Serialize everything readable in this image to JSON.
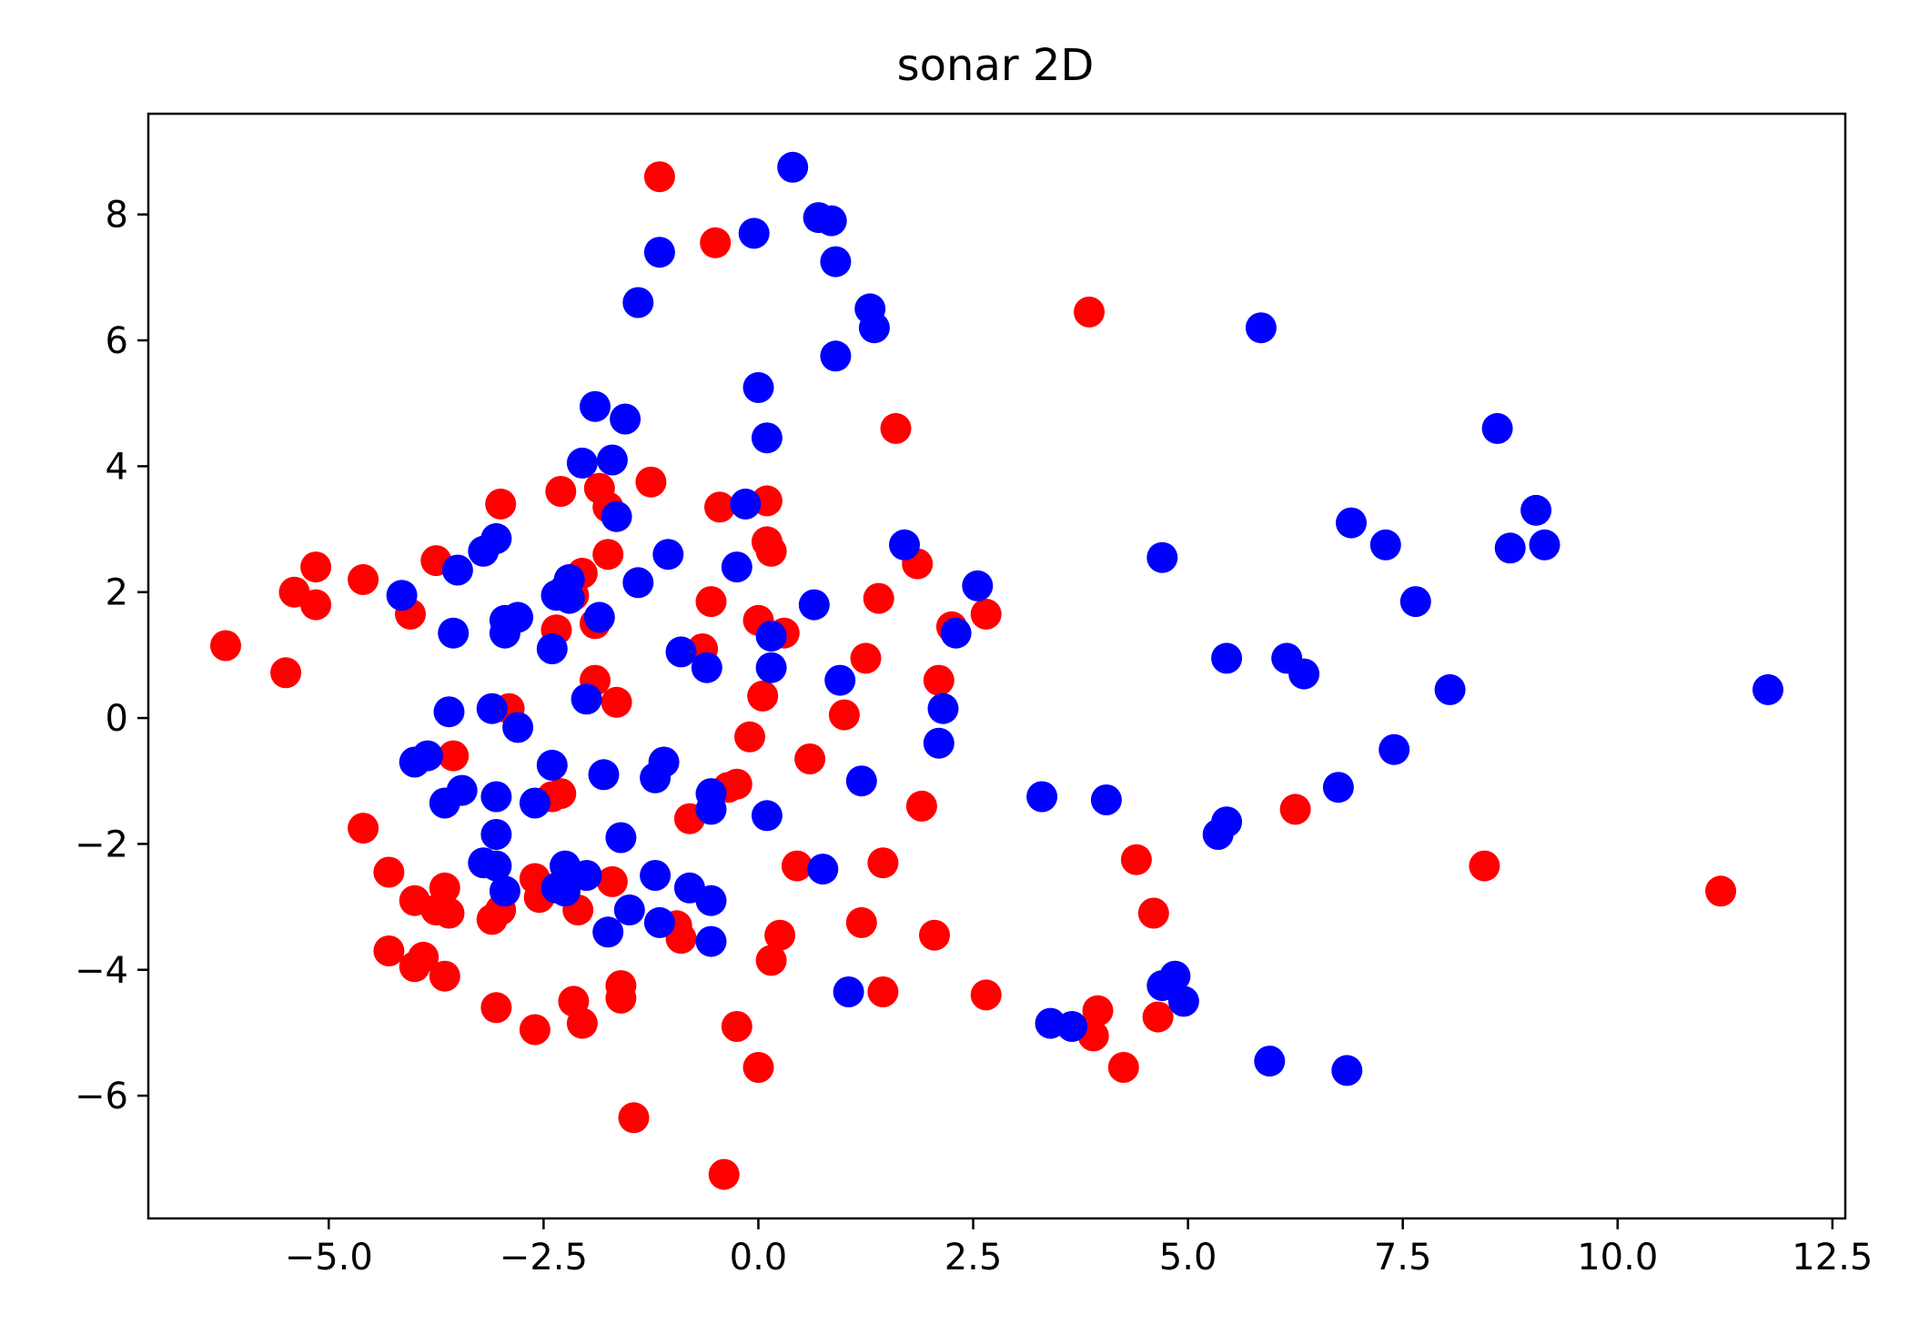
{
  "chart_data": {
    "type": "scatter",
    "title": "sonar 2D",
    "xlabel": "",
    "ylabel": "",
    "xlim": [
      -7.1,
      12.65
    ],
    "ylim": [
      -7.95,
      9.6
    ],
    "xticks": [
      -5.0,
      -2.5,
      0.0,
      2.5,
      5.0,
      7.5,
      10.0,
      12.5
    ],
    "xtick_labels": [
      "−5.0",
      "−2.5",
      "0.0",
      "2.5",
      "5.0",
      "7.5",
      "10.0",
      "12.5"
    ],
    "yticks": [
      -6,
      -4,
      -2,
      0,
      2,
      4,
      6,
      8
    ],
    "ytick_labels": [
      "−6",
      "−4",
      "−2",
      "0",
      "2",
      "4",
      "6",
      "8"
    ],
    "grid": false,
    "legend": "none",
    "series": [
      {
        "color": "#ff0000",
        "points": [
          [
            -6.2,
            1.15
          ],
          [
            -5.5,
            0.72
          ],
          [
            -5.4,
            2.0
          ],
          [
            -5.15,
            2.4
          ],
          [
            -5.15,
            1.8
          ],
          [
            -4.6,
            2.2
          ],
          [
            -4.6,
            -1.75
          ],
          [
            -4.3,
            -2.45
          ],
          [
            -4.3,
            -3.7
          ],
          [
            -4.05,
            1.65
          ],
          [
            -4.0,
            -2.9
          ],
          [
            -4.0,
            -3.95
          ],
          [
            -3.9,
            -3.8
          ],
          [
            -3.75,
            2.5
          ],
          [
            -3.65,
            -2.7
          ],
          [
            -3.75,
            -3.05
          ],
          [
            -3.6,
            -3.1
          ],
          [
            -3.55,
            -0.6
          ],
          [
            -3.65,
            -4.1
          ],
          [
            -3.0,
            3.4
          ],
          [
            -3.0,
            -3.05
          ],
          [
            -3.1,
            -3.2
          ],
          [
            -3.05,
            -4.6
          ],
          [
            -2.9,
            0.15
          ],
          [
            -2.6,
            -2.55
          ],
          [
            -2.55,
            -2.85
          ],
          [
            -2.6,
            -4.95
          ],
          [
            -2.4,
            -1.25
          ],
          [
            -2.3,
            3.6
          ],
          [
            -2.35,
            1.4
          ],
          [
            -2.3,
            -1.2
          ],
          [
            -2.15,
            1.95
          ],
          [
            -2.05,
            2.3
          ],
          [
            -2.1,
            -3.05
          ],
          [
            -2.15,
            -4.5
          ],
          [
            -2.05,
            -4.85
          ],
          [
            -1.9,
            0.6
          ],
          [
            -1.9,
            1.5
          ],
          [
            -1.85,
            3.65
          ],
          [
            -1.75,
            3.35
          ],
          [
            -1.75,
            2.6
          ],
          [
            -1.65,
            0.25
          ],
          [
            -1.7,
            -2.6
          ],
          [
            -1.6,
            -4.25
          ],
          [
            -1.6,
            -4.45
          ],
          [
            -1.45,
            -6.35
          ],
          [
            -1.25,
            3.75
          ],
          [
            -1.15,
            8.6
          ],
          [
            -0.95,
            -3.3
          ],
          [
            -0.9,
            -3.5
          ],
          [
            -0.65,
            1.1
          ],
          [
            -0.8,
            -1.6
          ],
          [
            -0.55,
            1.85
          ],
          [
            -0.45,
            3.35
          ],
          [
            -0.5,
            7.55
          ],
          [
            -0.35,
            -1.1
          ],
          [
            -0.25,
            -1.05
          ],
          [
            -0.25,
            -4.9
          ],
          [
            -0.4,
            -7.25
          ],
          [
            -0.1,
            -0.3
          ],
          [
            0.0,
            1.55
          ],
          [
            0.05,
            0.35
          ],
          [
            0.1,
            3.45
          ],
          [
            0.1,
            2.8
          ],
          [
            0.15,
            2.65
          ],
          [
            0.3,
            1.35
          ],
          [
            0.25,
            -3.45
          ],
          [
            0.15,
            -3.85
          ],
          [
            0.0,
            -5.55
          ],
          [
            0.45,
            -2.35
          ],
          [
            0.6,
            -0.65
          ],
          [
            1.0,
            0.05
          ],
          [
            1.25,
            0.95
          ],
          [
            1.2,
            -3.25
          ],
          [
            1.4,
            1.9
          ],
          [
            1.45,
            -2.3
          ],
          [
            1.45,
            -4.35
          ],
          [
            1.6,
            4.6
          ],
          [
            1.85,
            2.45
          ],
          [
            1.9,
            -1.4
          ],
          [
            2.1,
            0.6
          ],
          [
            2.05,
            -3.45
          ],
          [
            2.25,
            1.45
          ],
          [
            2.65,
            1.65
          ],
          [
            2.65,
            -4.4
          ],
          [
            3.85,
            6.45
          ],
          [
            3.95,
            -4.65
          ],
          [
            3.9,
            -5.05
          ],
          [
            4.25,
            -5.55
          ],
          [
            4.4,
            -2.25
          ],
          [
            4.6,
            -3.1
          ],
          [
            4.65,
            -4.75
          ],
          [
            6.25,
            -1.45
          ],
          [
            8.45,
            -2.35
          ],
          [
            11.2,
            -2.75
          ]
        ]
      },
      {
        "color": "#0000ff",
        "points": [
          [
            -4.15,
            1.95
          ],
          [
            -4.0,
            -0.7
          ],
          [
            -3.85,
            -0.6
          ],
          [
            -3.65,
            -1.35
          ],
          [
            -3.6,
            0.1
          ],
          [
            -3.55,
            1.35
          ],
          [
            -3.5,
            2.35
          ],
          [
            -3.45,
            -1.15
          ],
          [
            -3.2,
            2.65
          ],
          [
            -3.1,
            0.15
          ],
          [
            -3.05,
            2.85
          ],
          [
            -3.05,
            -1.25
          ],
          [
            -3.05,
            -1.85
          ],
          [
            -2.95,
            1.55
          ],
          [
            -2.95,
            1.35
          ],
          [
            -2.8,
            1.6
          ],
          [
            -2.8,
            -0.15
          ],
          [
            -3.2,
            -2.3
          ],
          [
            -3.05,
            -2.35
          ],
          [
            -2.95,
            -2.75
          ],
          [
            -2.6,
            -1.35
          ],
          [
            -2.4,
            1.1
          ],
          [
            -2.35,
            1.95
          ],
          [
            -2.4,
            -0.75
          ],
          [
            -2.35,
            -2.7
          ],
          [
            -2.25,
            -2.35
          ],
          [
            -2.25,
            -2.75
          ],
          [
            -2.25,
            2.05
          ],
          [
            -2.2,
            2.2
          ],
          [
            -2.2,
            1.9
          ],
          [
            -2.05,
            4.05
          ],
          [
            -2.0,
            -2.5
          ],
          [
            -2.0,
            0.3
          ],
          [
            -1.9,
            4.95
          ],
          [
            -1.85,
            1.6
          ],
          [
            -1.8,
            -0.9
          ],
          [
            -1.7,
            4.1
          ],
          [
            -1.65,
            3.2
          ],
          [
            -1.6,
            -1.9
          ],
          [
            -1.55,
            4.75
          ],
          [
            -1.5,
            -3.05
          ],
          [
            -1.4,
            2.15
          ],
          [
            -1.4,
            6.6
          ],
          [
            -1.75,
            -3.4
          ],
          [
            -1.2,
            -2.5
          ],
          [
            -1.2,
            -0.95
          ],
          [
            -1.15,
            7.4
          ],
          [
            -1.15,
            -3.25
          ],
          [
            -1.1,
            -0.7
          ],
          [
            -1.05,
            2.6
          ],
          [
            -0.9,
            1.05
          ],
          [
            -0.8,
            -2.7
          ],
          [
            -0.6,
            0.8
          ],
          [
            -0.55,
            -1.2
          ],
          [
            -0.55,
            -1.45
          ],
          [
            -0.55,
            -2.9
          ],
          [
            -0.55,
            -3.55
          ],
          [
            -0.25,
            2.4
          ],
          [
            -0.15,
            3.4
          ],
          [
            -0.05,
            7.7
          ],
          [
            0.0,
            5.25
          ],
          [
            0.1,
            4.45
          ],
          [
            0.15,
            1.3
          ],
          [
            0.15,
            0.8
          ],
          [
            0.1,
            -1.55
          ],
          [
            0.4,
            8.75
          ],
          [
            0.65,
            1.8
          ],
          [
            0.7,
            7.95
          ],
          [
            0.85,
            7.9
          ],
          [
            0.9,
            7.25
          ],
          [
            0.9,
            5.75
          ],
          [
            0.95,
            0.6
          ],
          [
            0.75,
            -2.4
          ],
          [
            1.05,
            -4.35
          ],
          [
            1.2,
            -1.0
          ],
          [
            1.3,
            6.5
          ],
          [
            1.35,
            6.2
          ],
          [
            1.7,
            2.75
          ],
          [
            2.1,
            -0.4
          ],
          [
            2.15,
            0.15
          ],
          [
            2.3,
            1.35
          ],
          [
            2.55,
            2.1
          ],
          [
            3.3,
            -1.25
          ],
          [
            3.4,
            -4.85
          ],
          [
            3.65,
            -4.9
          ],
          [
            4.05,
            -1.3
          ],
          [
            4.7,
            2.55
          ],
          [
            4.7,
            -4.25
          ],
          [
            4.85,
            -4.1
          ],
          [
            4.95,
            -4.5
          ],
          [
            5.35,
            -1.85
          ],
          [
            5.45,
            -1.65
          ],
          [
            5.45,
            0.95
          ],
          [
            5.85,
            6.2
          ],
          [
            5.95,
            -5.45
          ],
          [
            6.15,
            0.95
          ],
          [
            6.35,
            0.7
          ],
          [
            6.75,
            -1.1
          ],
          [
            6.9,
            3.1
          ],
          [
            6.85,
            -5.6
          ],
          [
            7.3,
            2.75
          ],
          [
            7.4,
            -0.5
          ],
          [
            7.65,
            1.85
          ],
          [
            8.05,
            0.45
          ],
          [
            8.6,
            4.6
          ],
          [
            8.75,
            2.7
          ],
          [
            9.05,
            3.3
          ],
          [
            9.15,
            2.75
          ],
          [
            11.75,
            0.45
          ]
        ]
      }
    ]
  }
}
